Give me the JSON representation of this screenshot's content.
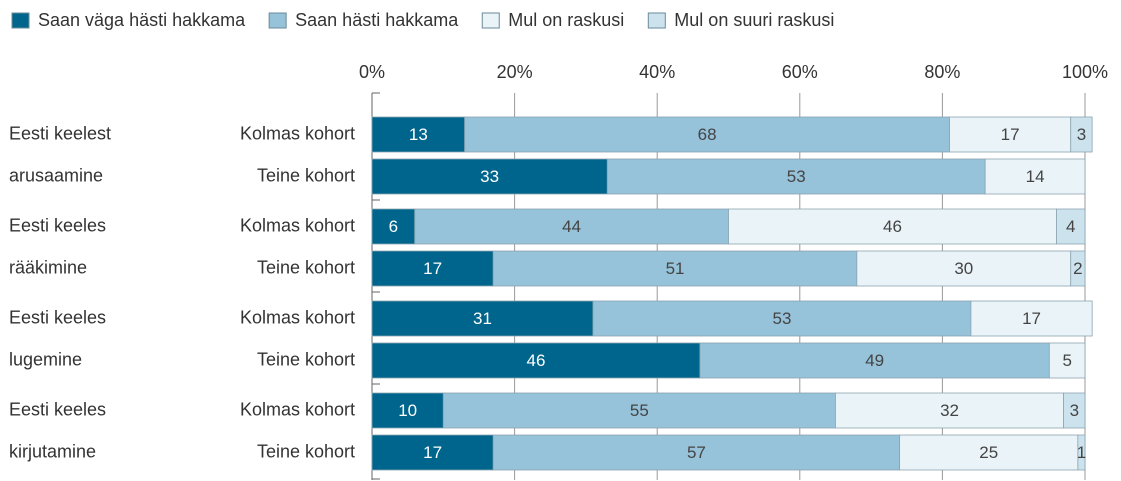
{
  "chart_data": {
    "type": "stacked-barh",
    "groups": [
      [
        "Eesti keelest",
        "arusaamine"
      ],
      [
        "Eesti keeles",
        "rääkimine"
      ],
      [
        "Eesti keeles",
        "lugemine"
      ],
      [
        "Eesti keeles",
        "kirjutamine"
      ]
    ],
    "categories": [
      "Kolmas kohort",
      "Teine kohort",
      "Kolmas kohort",
      "Teine kohort",
      "Kolmas kohort",
      "Teine kohort",
      "Kolmas kohort",
      "Teine kohort"
    ],
    "series": [
      {
        "name": "Saan väga hästi hakkama",
        "color": "#00658c",
        "values": [
          13,
          33,
          6,
          17,
          31,
          46,
          10,
          17
        ]
      },
      {
        "name": "Saan hästi hakkama",
        "color": "#96c3da",
        "values": [
          68,
          53,
          44,
          51,
          53,
          49,
          55,
          57
        ]
      },
      {
        "name": "Mul on raskusi",
        "color": "#eaf3f7",
        "values": [
          17,
          14,
          46,
          30,
          17,
          5,
          32,
          25
        ]
      },
      {
        "name": "Mul on suuri raskusi",
        "color": "#cce3ee",
        "values": [
          3,
          null,
          4,
          2,
          null,
          null,
          3,
          1
        ]
      }
    ],
    "xlim": [
      0,
      100
    ],
    "xticks": [
      {
        "value": 0,
        "label": "0%"
      },
      {
        "value": 20,
        "label": "20%"
      },
      {
        "value": 40,
        "label": "40%"
      },
      {
        "value": 60,
        "label": "60%"
      },
      {
        "value": 80,
        "label": "80%"
      },
      {
        "value": 100,
        "label": "100%"
      }
    ],
    "grid": true
  }
}
